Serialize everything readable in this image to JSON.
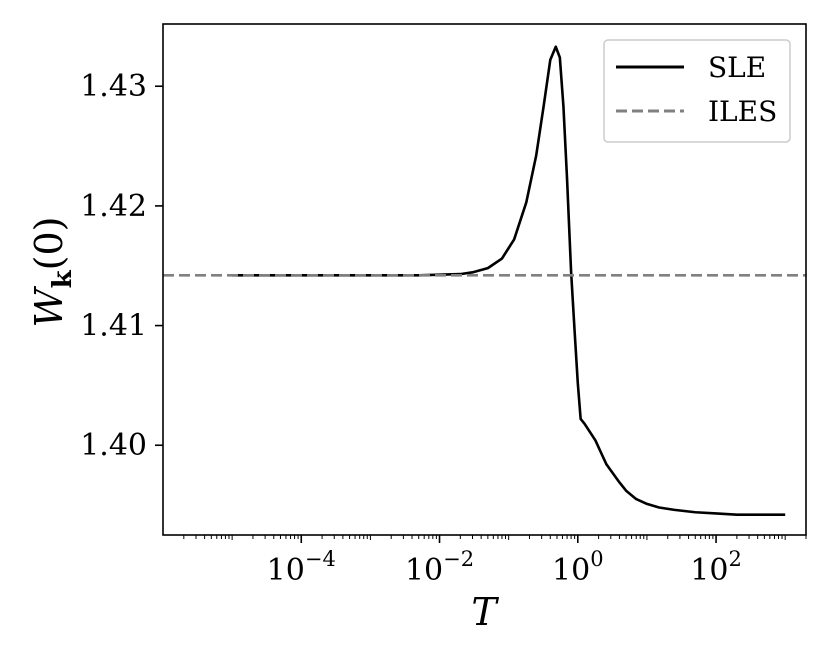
{
  "chart_data": {
    "type": "line",
    "x_scale": "log",
    "xlim": [
      1e-06,
      2000
    ],
    "ylim": [
      1.3925,
      1.4352
    ],
    "x_ticks": [
      {
        "value": 0.0001,
        "base": "10",
        "exp": "−4"
      },
      {
        "value": 0.01,
        "base": "10",
        "exp": "−2"
      },
      {
        "value": 1,
        "base": "10",
        "exp": "0"
      },
      {
        "value": 100,
        "base": "10",
        "exp": "2"
      }
    ],
    "y_ticks": [
      {
        "value": 1.4,
        "label": "1.40"
      },
      {
        "value": 1.41,
        "label": "1.41"
      },
      {
        "value": 1.42,
        "label": "1.42"
      },
      {
        "value": 1.43,
        "label": "1.43"
      }
    ],
    "xlabel": "T",
    "ylabel": {
      "main": "W",
      "sub": "k",
      "rest": "(0)"
    },
    "grid": false,
    "legend_position": "top-right",
    "series": [
      {
        "name": "SLE",
        "color": "#000000",
        "style": "solid",
        "x": [
          1e-05,
          0.0001,
          0.001,
          0.005,
          0.01,
          0.02,
          0.03,
          0.05,
          0.08,
          0.12,
          0.18,
          0.25,
          0.32,
          0.4,
          0.48,
          0.55,
          0.62,
          0.7,
          0.8,
          0.9,
          1.0,
          1.1,
          1.25,
          1.5,
          1.8,
          2.2,
          2.6,
          3.0,
          4.0,
          5.0,
          7.0,
          10,
          15,
          25,
          50,
          100,
          200,
          400,
          1000
        ],
        "y": [
          1.4142,
          1.4142,
          1.4142,
          1.4142,
          1.41425,
          1.4143,
          1.41445,
          1.4148,
          1.4156,
          1.4172,
          1.4203,
          1.4242,
          1.4283,
          1.4322,
          1.4333,
          1.4324,
          1.4283,
          1.4222,
          1.4145,
          1.4095,
          1.4052,
          1.4022,
          1.4018,
          1.4011,
          1.4004,
          1.3993,
          1.3984,
          1.3979,
          1.3969,
          1.3962,
          1.3955,
          1.3951,
          1.3948,
          1.3946,
          1.3944,
          1.3943,
          1.3942,
          1.3942,
          1.3942
        ]
      },
      {
        "name": "ILES",
        "color": "#808080",
        "style": "dashed",
        "y_constant": 1.4142
      }
    ]
  }
}
